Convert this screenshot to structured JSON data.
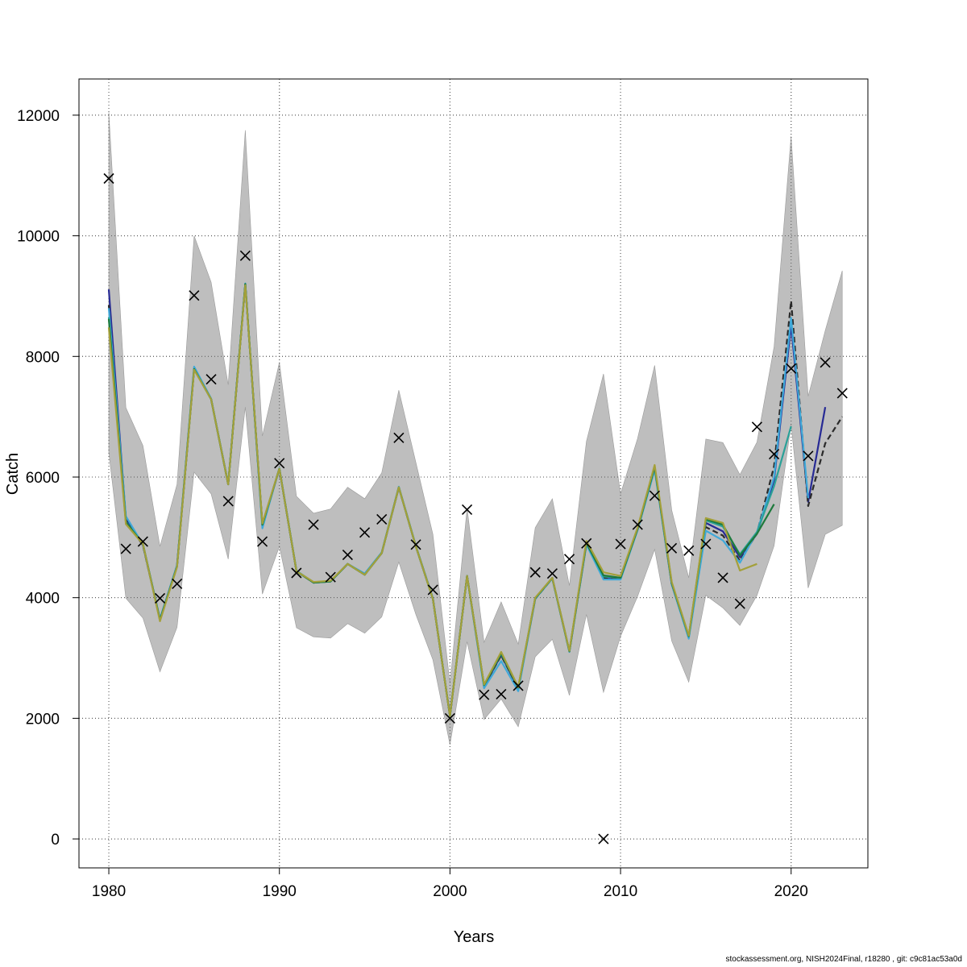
{
  "chart_data": {
    "type": "line",
    "title": "",
    "xlabel": "Years",
    "ylabel": "Catch",
    "xlim": [
      1978.25,
      2024.5
    ],
    "ylim": [
      -480,
      12600
    ],
    "x_ticks": [
      1980,
      1990,
      2000,
      2010,
      2020
    ],
    "y_ticks": [
      0,
      2000,
      4000,
      6000,
      8000,
      10000,
      12000
    ],
    "grid": true,
    "legend": "none",
    "colors": {
      "band": "#bebebe",
      "observed": "#000000",
      "grid": "#555555"
    },
    "band": {
      "x": [
        1980,
        1981,
        1982,
        1983,
        1984,
        1985,
        1986,
        1987,
        1988,
        1989,
        1990,
        1991,
        1992,
        1993,
        1994,
        1995,
        1996,
        1997,
        1998,
        1999,
        2000,
        2001,
        2002,
        2003,
        2004,
        2005,
        2006,
        2007,
        2008,
        2009,
        2010,
        2011,
        2012,
        2013,
        2014,
        2015,
        2016,
        2017,
        2018,
        2019,
        2020,
        2021,
        2022,
        2023
      ],
      "upper": [
        12050,
        7150,
        6520,
        4850,
        5880,
        10000,
        9230,
        7530,
        11750,
        6680,
        7900,
        5680,
        5400,
        5470,
        5830,
        5640,
        6070,
        7440,
        6240,
        5050,
        2580,
        5480,
        3260,
        3930,
        3230,
        5160,
        5640,
        4200,
        6590,
        7710,
        5720,
        6640,
        7850,
        5450,
        4330,
        6630,
        6570,
        6040,
        6580,
        8160,
        11650,
        7340,
        8430,
        9420
      ],
      "lower": [
        6410,
        3990,
        3660,
        2770,
        3510,
        6080,
        5720,
        4640,
        7160,
        4060,
        4850,
        3500,
        3350,
        3330,
        3570,
        3410,
        3680,
        4590,
        3720,
        2970,
        1560,
        3270,
        1980,
        2320,
        1860,
        3020,
        3310,
        2380,
        3720,
        2430,
        3360,
        4020,
        4800,
        3280,
        2600,
        4040,
        3830,
        3540,
        4040,
        4860,
        6870,
        4160,
        5050,
        5200
      ]
    },
    "series": [
      {
        "color": "#272a95",
        "dash": "",
        "x": [
          1980,
          1981,
          1982,
          1983,
          1984,
          1985,
          1986,
          1987,
          1988,
          1989,
          1990,
          1991,
          1992,
          1993,
          1994,
          1995,
          1996,
          1997,
          1998,
          1999,
          2000,
          2001,
          2002,
          2003,
          2004,
          2005,
          2006,
          2007,
          2008,
          2009,
          2010,
          2011,
          2012,
          2013,
          2014,
          2015,
          2016,
          2017,
          2018,
          2019,
          2020,
          2021,
          2022
        ],
        "values": [
          9110,
          5300,
          4870,
          3640,
          4530,
          7800,
          7290,
          5880,
          9200,
          5190,
          6140,
          4440,
          4250,
          4270,
          4560,
          4380,
          4740,
          5830,
          4850,
          3980,
          2040,
          4360,
          2530,
          3050,
          2490,
          3990,
          4320,
          3110,
          4890,
          4330,
          4320,
          5130,
          6150,
          4220,
          3350,
          5240,
          5100,
          4670,
          5060,
          5950,
          8520,
          5590,
          7160
        ]
      },
      {
        "color": "#2a2a2a",
        "dash": "7,4",
        "x": [
          1980,
          1981,
          1982,
          1983,
          1984,
          1985,
          1986,
          1987,
          1988,
          1989,
          1990,
          1991,
          1992,
          1993,
          1994,
          1995,
          1996,
          1997,
          1998,
          1999,
          2000,
          2001,
          2002,
          2003,
          2004,
          2005,
          2006,
          2007,
          2008,
          2009,
          2010,
          2011,
          2012,
          2013,
          2014,
          2015,
          2016,
          2017,
          2018,
          2019,
          2020,
          2021,
          2022,
          2023
        ],
        "values": [
          8850,
          5280,
          4870,
          3640,
          4530,
          7790,
          7290,
          5880,
          9190,
          5200,
          6140,
          4440,
          4250,
          4270,
          4560,
          4390,
          4740,
          5830,
          4850,
          3990,
          2040,
          4360,
          2540,
          3040,
          2500,
          3980,
          4320,
          3110,
          4890,
          4330,
          4320,
          5130,
          6150,
          4230,
          3350,
          5170,
          5030,
          4610,
          5070,
          6180,
          8920,
          5520,
          6560,
          7000
        ]
      },
      {
        "color": "#3fa9d9",
        "dash": "",
        "x": [
          1980,
          1981,
          1982,
          1983,
          1984,
          1985,
          1986,
          1987,
          1988,
          1989,
          1990,
          1991,
          1992,
          1993,
          1994,
          1995,
          1996,
          1997,
          1998,
          1999,
          2000,
          2001,
          2002,
          2003,
          2004,
          2005,
          2006,
          2007,
          2008,
          2009,
          2010,
          2011,
          2012,
          2013,
          2014,
          2015,
          2016,
          2017,
          2018,
          2019,
          2020,
          2021
        ],
        "values": [
          8800,
          5350,
          4880,
          3650,
          4540,
          7830,
          7300,
          5890,
          9210,
          5150,
          6150,
          4450,
          4250,
          4270,
          4560,
          4400,
          4750,
          5840,
          4860,
          3990,
          2040,
          4360,
          2500,
          2950,
          2450,
          3980,
          4320,
          3100,
          4880,
          4300,
          4300,
          5120,
          6120,
          4220,
          3320,
          5110,
          4950,
          4580,
          5090,
          6000,
          8640,
          5650
        ]
      },
      {
        "color": "#2aa198",
        "dash": "",
        "x": [
          1980,
          1981,
          1982,
          1983,
          1984,
          1985,
          1986,
          1987,
          1988,
          1989,
          1990,
          1991,
          1992,
          1993,
          1994,
          1995,
          1996,
          1997,
          1998,
          1999,
          2000,
          2001,
          2002,
          2003,
          2004,
          2005,
          2006,
          2007,
          2008,
          2009,
          2010,
          2011,
          2012,
          2013,
          2014,
          2015,
          2016,
          2017,
          2018,
          2019,
          2020
        ],
        "values": [
          8650,
          5260,
          4890,
          3630,
          4520,
          7790,
          7290,
          5880,
          9200,
          5210,
          6140,
          4440,
          4250,
          4270,
          4560,
          4380,
          4740,
          5830,
          4850,
          3980,
          2040,
          4360,
          2550,
          3070,
          2510,
          3990,
          4320,
          3110,
          4910,
          4350,
          4330,
          5140,
          6160,
          4240,
          3360,
          5280,
          5180,
          4720,
          5090,
          5850,
          6840
        ]
      },
      {
        "color": "#1e7a3c",
        "dash": "",
        "x": [
          1980,
          1981,
          1982,
          1983,
          1984,
          1985,
          1986,
          1987,
          1988,
          1989,
          1990,
          1991,
          1992,
          1993,
          1994,
          1995,
          1996,
          1997,
          1998,
          1999,
          2000,
          2001,
          2002,
          2003,
          2004,
          2005,
          2006,
          2007,
          2008,
          2009,
          2010,
          2011,
          2012,
          2013,
          2014,
          2015,
          2016,
          2017,
          2018,
          2019
        ],
        "values": [
          8620,
          5250,
          4890,
          3630,
          4520,
          7790,
          7290,
          5880,
          9200,
          5210,
          6140,
          4440,
          4250,
          4270,
          4560,
          4380,
          4740,
          5830,
          4850,
          3980,
          2040,
          4360,
          2550,
          3080,
          2510,
          3990,
          4330,
          3110,
          4910,
          4370,
          4330,
          5140,
          6170,
          4240,
          3360,
          5300,
          5210,
          4700,
          5060,
          5550
        ]
      },
      {
        "color": "#a4a03a",
        "dash": "",
        "x": [
          1980,
          1981,
          1982,
          1983,
          1984,
          1985,
          1986,
          1987,
          1988,
          1989,
          1990,
          1991,
          1992,
          1993,
          1994,
          1995,
          1996,
          1997,
          1998,
          1999,
          2000,
          2001,
          2002,
          2003,
          2004,
          2005,
          2006,
          2007,
          2008,
          2009,
          2010,
          2011,
          2012,
          2013,
          2014,
          2015,
          2016,
          2017,
          2018
        ],
        "values": [
          8480,
          5220,
          4890,
          3610,
          4510,
          7780,
          7290,
          5880,
          9180,
          5230,
          6140,
          4440,
          4260,
          4280,
          4560,
          4380,
          4740,
          5830,
          4850,
          3980,
          2040,
          4360,
          2560,
          3100,
          2520,
          4000,
          4330,
          3120,
          4940,
          4420,
          4360,
          5160,
          6200,
          4260,
          3370,
          5320,
          5240,
          4450,
          4560
        ]
      }
    ],
    "observed": {
      "marker": "x",
      "x": [
        1980,
        1981,
        1982,
        1983,
        1984,
        1985,
        1986,
        1987,
        1988,
        1989,
        1990,
        1991,
        1992,
        1993,
        1994,
        1995,
        1996,
        1997,
        1998,
        1999,
        2000,
        2001,
        2002,
        2003,
        2004,
        2005,
        2006,
        2007,
        2008,
        2009,
        2010,
        2011,
        2012,
        2013,
        2014,
        2015,
        2016,
        2017,
        2018,
        2019,
        2020,
        2021,
        2022,
        2023
      ],
      "values": [
        10950,
        4810,
        4930,
        3990,
        4230,
        9010,
        7620,
        5600,
        9670,
        4930,
        6230,
        4410,
        5210,
        4340,
        4710,
        5080,
        5300,
        6650,
        4880,
        4130,
        2000,
        5460,
        2390,
        2400,
        2540,
        4420,
        4400,
        4640,
        4900,
        0,
        4890,
        5210,
        5690,
        4820,
        4780,
        4890,
        4330,
        3900,
        6830,
        6380,
        7800,
        6350,
        7900,
        7390
      ]
    }
  },
  "footer_text": "stockassessment.org, NISH2024Final, r18280 , git: c9c81ac53a0d"
}
